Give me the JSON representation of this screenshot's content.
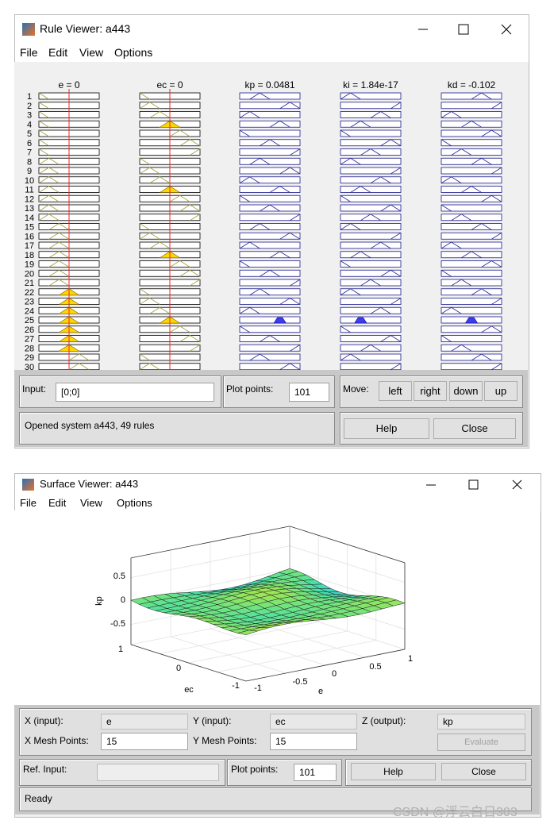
{
  "rule_viewer": {
    "title": "Rule Viewer: a443",
    "menu": [
      "File",
      "Edit",
      "View",
      "Options"
    ],
    "columns": [
      "e = 0",
      "ec = 0",
      "kp = 0.0481",
      "ki = 1.84e-17",
      "kd = -0.102"
    ],
    "rule_numbers": [
      1,
      2,
      3,
      4,
      5,
      6,
      7,
      8,
      9,
      10,
      11,
      12,
      13,
      14,
      15,
      16,
      17,
      18,
      19,
      20,
      21,
      22,
      23,
      24,
      25,
      26,
      27,
      28,
      29,
      30
    ],
    "input_label": "Input:",
    "input_value": "[0;0]",
    "plot_points_label": "Plot points:",
    "plot_points_value": "101",
    "move_label": "Move:",
    "move_buttons": [
      "left",
      "right",
      "down",
      "up"
    ],
    "status": "Opened system a443, 49 rules",
    "help": "Help",
    "close": "Close"
  },
  "surface_viewer": {
    "title": "Surface Viewer: a443",
    "menu": [
      "File",
      "Edit",
      "View",
      "Options"
    ],
    "plot": {
      "z_label": "kp",
      "z_ticks": [
        "0.5",
        "0",
        "-0.5"
      ],
      "ec_label": "ec",
      "ec_ticks": [
        "1",
        "0",
        "-1"
      ],
      "e_label": "e",
      "e_ticks": [
        "1",
        "0.5",
        "0",
        "-0.5",
        "-1"
      ]
    },
    "x_input_label": "X (input):",
    "x_input": "e",
    "y_input_label": "Y (input):",
    "y_input": "ec",
    "z_output_label": "Z (output):",
    "z_output": "kp",
    "x_mesh_label": "X Mesh Points:",
    "x_mesh": "15",
    "y_mesh_label": "Y Mesh Points:",
    "y_mesh": "15",
    "evaluate": "Evaluate",
    "ref_input_label": "Ref. Input:",
    "plot_points_label": "Plot points:",
    "plot_points_value": "101",
    "help": "Help",
    "close": "Close",
    "status": "Ready"
  },
  "watermark": "CSDN @浮云白日303"
}
